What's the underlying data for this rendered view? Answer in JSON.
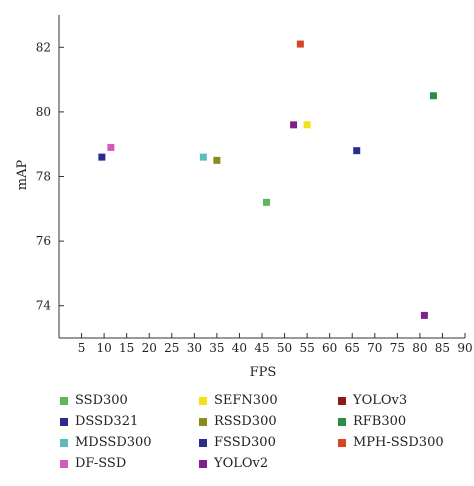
{
  "chart_data": {
    "type": "scatter",
    "title": "",
    "xlabel": "FPS",
    "ylabel": "mAP",
    "xlim": [
      0,
      90
    ],
    "ylim": [
      73,
      83
    ],
    "x_ticks": [
      5,
      10,
      15,
      20,
      25,
      30,
      35,
      40,
      45,
      50,
      55,
      60,
      65,
      70,
      75,
      80,
      85,
      90
    ],
    "y_ticks": [
      74,
      76,
      78,
      80,
      82
    ],
    "grid": false,
    "legend_position": "bottom",
    "series": [
      {
        "name": "SSD300",
        "color": "#5cb85c",
        "x": [
          46
        ],
        "y": [
          77.2
        ]
      },
      {
        "name": "DSSD321",
        "color": "#2e2a8c",
        "x": [
          9.5
        ],
        "y": [
          78.6
        ]
      },
      {
        "name": "MDSSD300",
        "color": "#5bbcbc",
        "x": [
          32
        ],
        "y": [
          78.6
        ]
      },
      {
        "name": "DF-SSD",
        "color": "#d65ab4",
        "x": [
          11.5
        ],
        "y": [
          78.9
        ]
      },
      {
        "name": "SEFN300",
        "color": "#f5e11a",
        "x": [
          55
        ],
        "y": [
          79.6
        ]
      },
      {
        "name": "RSSD300",
        "color": "#8c8a1e",
        "x": [
          35
        ],
        "y": [
          78.5
        ]
      },
      {
        "name": "FSSD300",
        "color": "#2c2f8a",
        "x": [
          66
        ],
        "y": [
          78.8
        ]
      },
      {
        "name": "YOLOv2",
        "color": "#7a2388",
        "x": [
          52,
          81
        ],
        "y": [
          79.6,
          73.7
        ]
      },
      {
        "name": "YOLOv3",
        "color": "#8b1a1a",
        "x": [],
        "y": []
      },
      {
        "name": "RFB300",
        "color": "#2e8b45",
        "x": [
          83
        ],
        "y": [
          80.5
        ]
      },
      {
        "name": "MPH-SSD300",
        "color": "#d64527",
        "x": [
          53.5
        ],
        "y": [
          82.1
        ]
      }
    ],
    "legend_order": [
      [
        "SSD300",
        "SEFN300",
        "YOLOv3"
      ],
      [
        "DSSD321",
        "RSSD300",
        "RFB300"
      ],
      [
        "MDSSD300",
        "FSSD300",
        "MPH-SSD300"
      ],
      [
        "DF-SSD",
        "YOLOv2"
      ]
    ]
  }
}
